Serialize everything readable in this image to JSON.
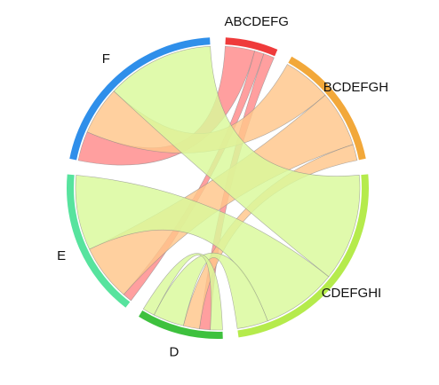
{
  "chart_data": {
    "type": "chord",
    "sectors": [
      {
        "name": "ABCDEFG",
        "color": "#EF3B3B"
      },
      {
        "name": "BCDEFGH",
        "color": "#F2A83A"
      },
      {
        "name": "CDEFGHI",
        "color": "#B5EB4C"
      },
      {
        "name": "D",
        "color": "#3EC13E"
      },
      {
        "name": "E",
        "color": "#57E39E"
      },
      {
        "name": "F",
        "color": "#2F8FEA"
      }
    ],
    "links": [
      {
        "from": "ABCDEFG",
        "to": "F",
        "value": 2.2,
        "color": "#FF8A8A"
      },
      {
        "from": "ABCDEFG",
        "to": "E",
        "value": 0.7,
        "color": "#FF8A8A"
      },
      {
        "from": "ABCDEFG",
        "to": "D",
        "value": 0.8,
        "color": "#FF8A8A"
      },
      {
        "from": "BCDEFGH",
        "to": "F",
        "value": 3.6,
        "color": "#FFC68A"
      },
      {
        "from": "BCDEFGH",
        "to": "E",
        "value": 4.2,
        "color": "#FFC68A"
      },
      {
        "from": "BCDEFGH",
        "to": "D",
        "value": 1.2,
        "color": "#FFC68A"
      },
      {
        "from": "CDEFGHI",
        "to": "F",
        "value": 8.0,
        "color": "#D9F99A"
      },
      {
        "from": "CDEFGHI",
        "to": "E",
        "value": 5.6,
        "color": "#D9F99A"
      },
      {
        "from": "CDEFGHI",
        "to": "D",
        "value": 2.3,
        "color": "#D9F99A"
      },
      {
        "from": "D",
        "to": "D",
        "value": 0.9,
        "color": "#D9F99A"
      }
    ]
  }
}
